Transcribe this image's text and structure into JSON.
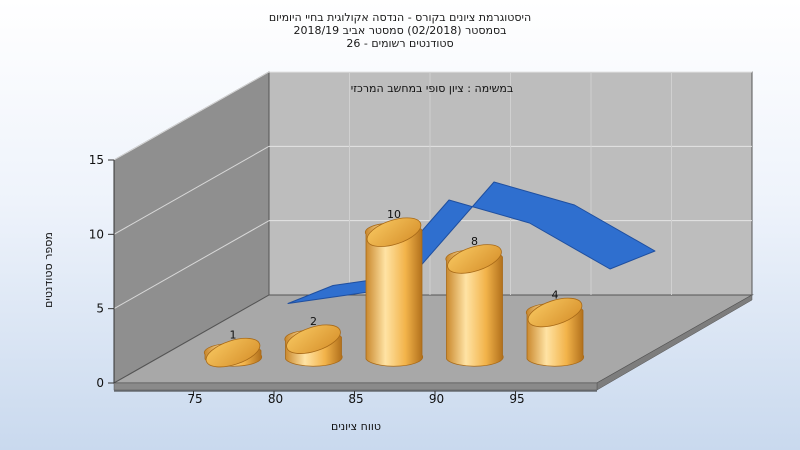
{
  "chart_data": {
    "type": "bar",
    "title_lines": [
      "היסטוגרמת ציונים בקורס - הנדסה אקולוגית בחיי היומיום",
      "בסמסטר  (02/2018)  סמסטר אביב 2018/19",
      "סטודנטים רשומים - 26"
    ],
    "note": "במשימה : ציון סופי במחשב המרכזי",
    "xlabel": "טווח ציונים",
    "ylabel": "מספר סטודנטים",
    "x_ticks": [
      "75",
      "80",
      "85",
      "90",
      "95"
    ],
    "y_ticks": [
      "0",
      "5",
      "10",
      "15"
    ],
    "ylim": [
      0,
      15
    ],
    "categories": [
      "75",
      "80",
      "85",
      "90",
      "95"
    ],
    "values": [
      1,
      2,
      10,
      8,
      4
    ],
    "data_labels": [
      "1",
      "2",
      "10",
      "8",
      "4"
    ],
    "ribbon_values": [
      1,
      2,
      10,
      8,
      4
    ],
    "colors": {
      "bar_light": "#ffd98c",
      "bar_mid": "#f0b040",
      "bar_dark": "#b8741c",
      "ribbon": "#2f6fcf",
      "ribbon_dark": "#1f4f9f",
      "back_wall": "#bdbdbd",
      "side_wall": "#8e8e8e",
      "floor": "#a6a6a6"
    }
  }
}
